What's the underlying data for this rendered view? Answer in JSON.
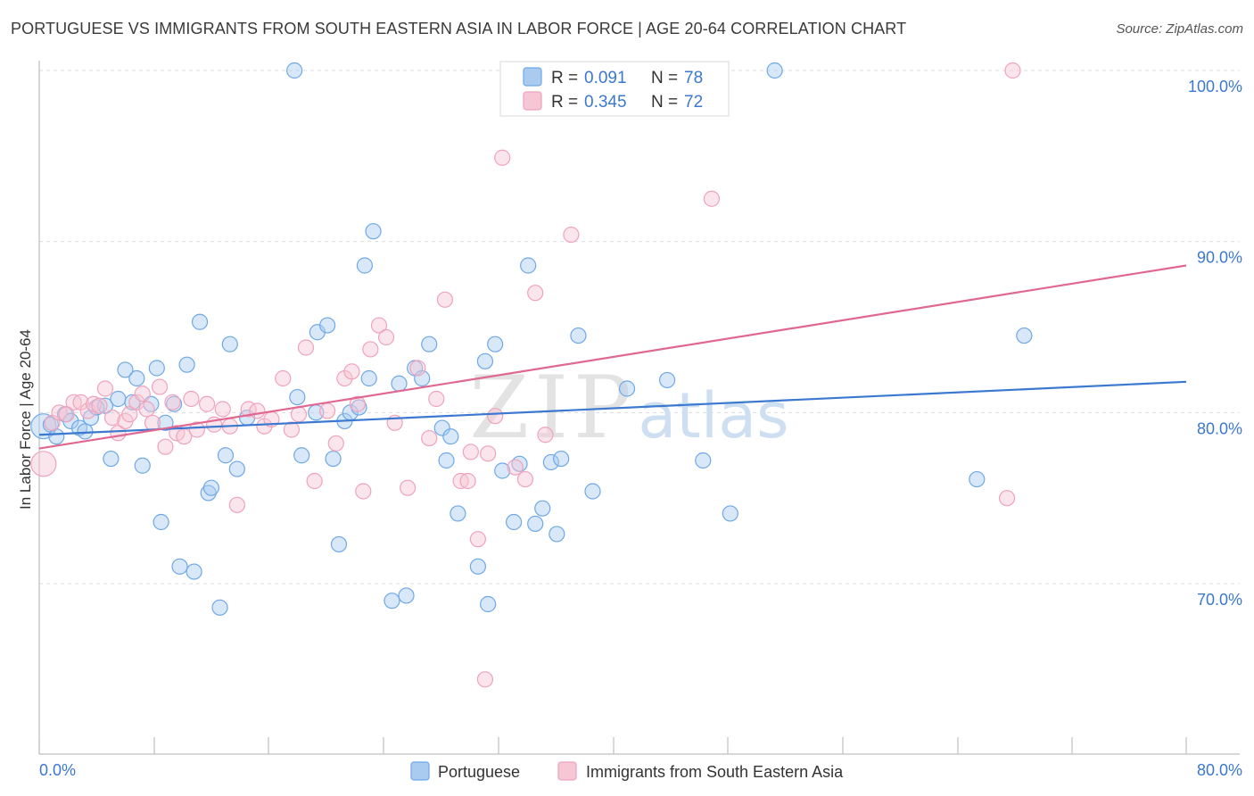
{
  "title": "PORTUGUESE VS IMMIGRANTS FROM SOUTH EASTERN ASIA IN LABOR FORCE | AGE 20-64 CORRELATION CHART",
  "source": "Source: ZipAtlas.com",
  "watermark": {
    "zip": "ZIP",
    "atlas": "atlas"
  },
  "chart_data": {
    "type": "scatter",
    "ylabel": "In Labor Force | Age 20-64",
    "xlim": [
      0,
      80
    ],
    "ylim": [
      60,
      101
    ],
    "x_tick_labels": [
      "0.0%",
      "80.0%"
    ],
    "y_ticks": [
      70,
      80,
      90,
      100
    ],
    "y_tick_labels": [
      "70.0%",
      "80.0%",
      "90.0%",
      "100.0%"
    ],
    "grid": true,
    "legend_position": "top-center",
    "series": [
      {
        "name": "Portuguese",
        "color": "#6fa8e6",
        "fill": "#a9cbf0",
        "line_color": "#3b78d0",
        "R": "0.091",
        "N": "78",
        "trend": [
          [
            0,
            78.7
          ],
          [
            80,
            81.8
          ]
        ],
        "points": [
          [
            0.3,
            79.2
          ],
          [
            0.8,
            79.3
          ],
          [
            1.2,
            78.6
          ],
          [
            1.8,
            79.9
          ],
          [
            2.2,
            79.5
          ],
          [
            2.8,
            79.1
          ],
          [
            3.2,
            78.9
          ],
          [
            3.6,
            79.7
          ],
          [
            4.0,
            80.3
          ],
          [
            4.6,
            80.4
          ],
          [
            5.0,
            77.3
          ],
          [
            5.5,
            80.8
          ],
          [
            6.0,
            82.5
          ],
          [
            6.5,
            80.6
          ],
          [
            6.8,
            82.0
          ],
          [
            7.2,
            76.9
          ],
          [
            7.8,
            80.5
          ],
          [
            8.2,
            82.6
          ],
          [
            8.5,
            73.6
          ],
          [
            8.8,
            79.4
          ],
          [
            9.4,
            80.5
          ],
          [
            9.8,
            71.0
          ],
          [
            10.3,
            82.8
          ],
          [
            10.8,
            70.7
          ],
          [
            11.2,
            85.3
          ],
          [
            11.8,
            75.3
          ],
          [
            12.0,
            75.6
          ],
          [
            12.6,
            68.6
          ],
          [
            13.0,
            77.5
          ],
          [
            13.3,
            84.0
          ],
          [
            13.8,
            76.7
          ],
          [
            14.5,
            79.7
          ],
          [
            17.8,
            100.0
          ],
          [
            18.3,
            77.5
          ],
          [
            18.0,
            80.9
          ],
          [
            19.3,
            80.0
          ],
          [
            19.4,
            84.7
          ],
          [
            20.1,
            85.1
          ],
          [
            20.5,
            77.3
          ],
          [
            20.9,
            72.3
          ],
          [
            21.3,
            79.5
          ],
          [
            21.7,
            80.0
          ],
          [
            22.3,
            80.3
          ],
          [
            22.7,
            88.6
          ],
          [
            23.0,
            82.0
          ],
          [
            23.3,
            90.6
          ],
          [
            24.6,
            69.0
          ],
          [
            25.1,
            81.7
          ],
          [
            25.6,
            69.3
          ],
          [
            26.2,
            82.6
          ],
          [
            26.7,
            82.0
          ],
          [
            27.2,
            84.0
          ],
          [
            28.1,
            79.1
          ],
          [
            28.4,
            77.2
          ],
          [
            28.7,
            78.6
          ],
          [
            29.2,
            74.1
          ],
          [
            30.6,
            71.0
          ],
          [
            31.1,
            83.0
          ],
          [
            31.3,
            68.8
          ],
          [
            31.8,
            84.0
          ],
          [
            32.3,
            76.6
          ],
          [
            33.1,
            73.6
          ],
          [
            33.5,
            77.0
          ],
          [
            34.1,
            88.6
          ],
          [
            34.6,
            73.5
          ],
          [
            35.1,
            74.4
          ],
          [
            35.7,
            77.1
          ],
          [
            36.1,
            72.9
          ],
          [
            36.4,
            77.3
          ],
          [
            37.6,
            84.5
          ],
          [
            38.6,
            75.4
          ],
          [
            41.0,
            81.4
          ],
          [
            43.8,
            81.9
          ],
          [
            46.3,
            77.2
          ],
          [
            48.2,
            74.1
          ],
          [
            51.3,
            100.0
          ],
          [
            65.4,
            76.1
          ],
          [
            68.7,
            84.5
          ]
        ]
      },
      {
        "name": "Immigrants from South Eastern Asia",
        "color": "#eea3bb",
        "fill": "#f6c6d5",
        "line_color": "#e06890",
        "R": "0.345",
        "N": "72",
        "trend": [
          [
            0,
            77.9
          ],
          [
            80,
            88.6
          ]
        ],
        "points": [
          [
            0.3,
            77.0
          ],
          [
            0.9,
            79.4
          ],
          [
            1.4,
            80.0
          ],
          [
            1.9,
            79.9
          ],
          [
            2.4,
            80.6
          ],
          [
            2.9,
            80.6
          ],
          [
            3.4,
            80.1
          ],
          [
            3.8,
            80.5
          ],
          [
            4.2,
            80.4
          ],
          [
            4.6,
            81.4
          ],
          [
            5.1,
            79.7
          ],
          [
            5.5,
            78.8
          ],
          [
            6.0,
            79.5
          ],
          [
            6.3,
            79.9
          ],
          [
            6.8,
            80.6
          ],
          [
            7.2,
            81.1
          ],
          [
            7.5,
            80.2
          ],
          [
            7.9,
            79.4
          ],
          [
            8.4,
            81.5
          ],
          [
            8.8,
            78.0
          ],
          [
            9.3,
            80.6
          ],
          [
            9.6,
            78.8
          ],
          [
            10.1,
            78.6
          ],
          [
            10.6,
            80.8
          ],
          [
            11.0,
            79.0
          ],
          [
            11.7,
            80.5
          ],
          [
            12.2,
            79.3
          ],
          [
            12.8,
            80.2
          ],
          [
            13.3,
            79.2
          ],
          [
            13.8,
            74.6
          ],
          [
            14.6,
            80.2
          ],
          [
            15.2,
            80.1
          ],
          [
            15.7,
            79.2
          ],
          [
            16.2,
            79.6
          ],
          [
            17.0,
            82.0
          ],
          [
            17.6,
            79.0
          ],
          [
            18.1,
            79.9
          ],
          [
            18.6,
            83.8
          ],
          [
            19.2,
            76.0
          ],
          [
            20.1,
            80.1
          ],
          [
            20.7,
            78.2
          ],
          [
            21.3,
            82.0
          ],
          [
            21.8,
            82.4
          ],
          [
            22.2,
            80.5
          ],
          [
            22.6,
            75.4
          ],
          [
            23.1,
            83.7
          ],
          [
            23.7,
            85.1
          ],
          [
            24.2,
            84.4
          ],
          [
            24.8,
            79.4
          ],
          [
            25.7,
            75.6
          ],
          [
            26.4,
            82.6
          ],
          [
            27.2,
            78.5
          ],
          [
            27.7,
            80.8
          ],
          [
            28.3,
            86.6
          ],
          [
            29.4,
            76.0
          ],
          [
            29.9,
            76.0
          ],
          [
            30.6,
            72.6
          ],
          [
            31.3,
            77.6
          ],
          [
            31.8,
            79.8
          ],
          [
            32.3,
            94.9
          ],
          [
            33.2,
            76.8
          ],
          [
            33.9,
            76.1
          ],
          [
            34.6,
            87.0
          ],
          [
            35.3,
            78.7
          ],
          [
            37.1,
            90.4
          ],
          [
            46.9,
            92.5
          ],
          [
            31.1,
            64.4
          ],
          [
            33.7,
            100.0
          ],
          [
            41.8,
            100.0
          ],
          [
            67.9,
            100.0
          ],
          [
            67.5,
            75.0
          ],
          [
            30.1,
            77.7
          ]
        ]
      }
    ]
  }
}
